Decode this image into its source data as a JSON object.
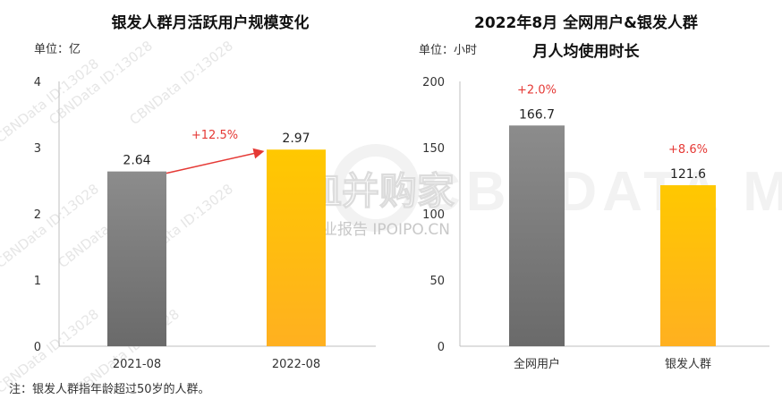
{
  "watermark": {
    "repeated_text": "CBNData ID:13028",
    "logo_text": "CBNDATA MOBILE",
    "brand_text": "皿并购家",
    "brand_sub": "行业报告 IPOIPO.CN"
  },
  "note": "注：银发人群指年龄超过50岁的人群。",
  "colors": {
    "gray": "#7f7f7f",
    "gold": "#ffc000",
    "red": "#e53935"
  },
  "chart_data": [
    {
      "type": "bar",
      "title": "银发人群月活跃用户规模变化",
      "unit_label": "单位：亿",
      "categories": [
        "2021-08",
        "2022-08"
      ],
      "values": [
        2.64,
        2.97
      ],
      "value_labels": [
        "2.64",
        "2.97"
      ],
      "ylim": [
        0,
        4
      ],
      "yticks": [
        "0",
        "1",
        "2",
        "3",
        "4"
      ],
      "bar_colors": [
        "gray",
        "gold"
      ],
      "annotation": "+12.5%",
      "grid": false
    },
    {
      "type": "bar",
      "title_line1": "2022年8月 全网用户&银发人群",
      "title_line2": "月人均使用时长",
      "unit_label": "单位：小时",
      "categories": [
        "全网用户",
        "银发人群"
      ],
      "values": [
        166.7,
        121.6
      ],
      "value_labels": [
        "166.7",
        "121.6"
      ],
      "growth_labels": [
        "+2.0%",
        "+8.6%"
      ],
      "ylim": [
        0,
        200
      ],
      "yticks": [
        "0",
        "50",
        "100",
        "150",
        "200"
      ],
      "bar_colors": [
        "gray",
        "gold"
      ],
      "grid": false
    }
  ]
}
